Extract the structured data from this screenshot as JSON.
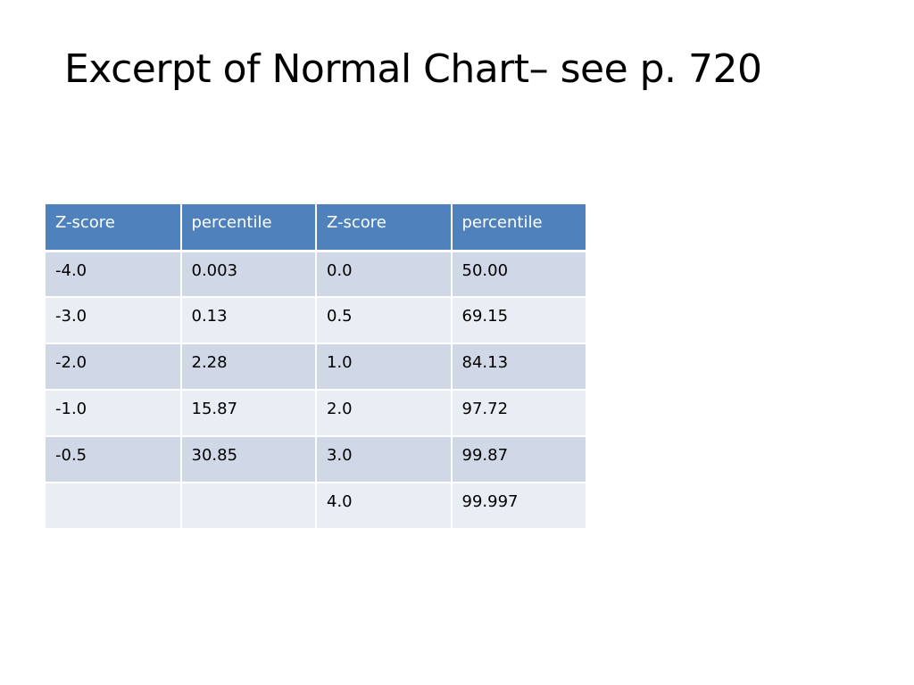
{
  "slide": {
    "title": "Excerpt of Normal Chart– see p. 720"
  },
  "table": {
    "headers": [
      "Z-score",
      "percentile",
      "Z-score",
      "percentile"
    ],
    "rows": [
      [
        "-4.0",
        "0.003",
        "0.0",
        "50.00"
      ],
      [
        "-3.0",
        "0.13",
        "0.5",
        "69.15"
      ],
      [
        "-2.0",
        "2.28",
        "1.0",
        "84.13"
      ],
      [
        "-1.0",
        "15.87",
        "2.0",
        "97.72"
      ],
      [
        "-0.5",
        "30.85",
        "3.0",
        "99.87"
      ],
      [
        "",
        "",
        "4.0",
        "99.997"
      ]
    ]
  },
  "colors": {
    "header_bg": "#4f81bd",
    "row_band_dark": "#d0d8e8",
    "row_band_light": "#e9edf4"
  }
}
